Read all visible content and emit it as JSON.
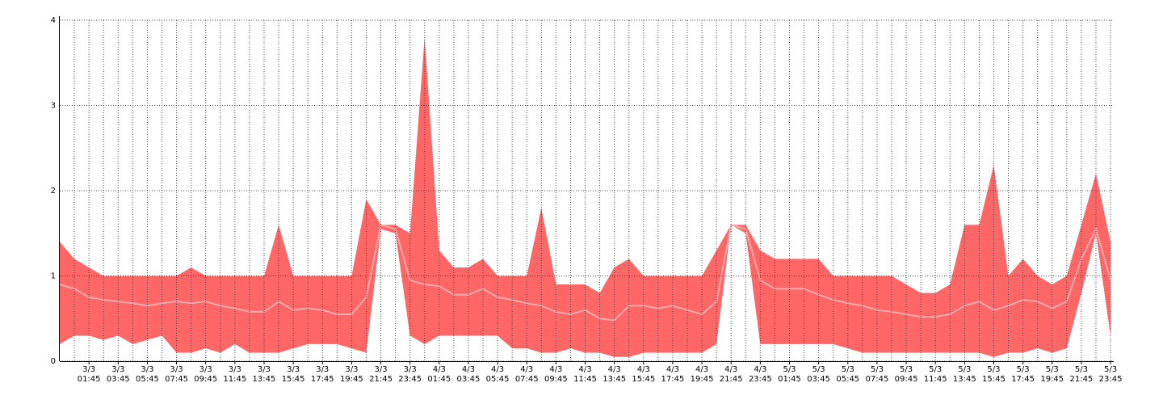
{
  "chart_data": {
    "type": "band",
    "x": [
      null,
      null,
      "3/3 01:45",
      null,
      "3/3 03:45",
      null,
      "3/3 05:45",
      null,
      "3/3 07:45",
      null,
      "3/3 09:45",
      null,
      "3/3 11:45",
      null,
      "3/3 13:45",
      null,
      "3/3 15:45",
      null,
      "3/3 17:45",
      null,
      "3/3 19:45",
      null,
      "3/3 21:45",
      null,
      "3/3 23:45",
      null,
      "4/3 01:45",
      null,
      "4/3 03:45",
      null,
      "4/3 05:45",
      null,
      "4/3 07:45",
      null,
      "4/3 09:45",
      null,
      "4/3 11:45",
      null,
      "4/3 13:45",
      null,
      "4/3 15:45",
      null,
      "4/3 17:45",
      null,
      "4/3 19:45",
      null,
      "4/3 21:45",
      null,
      "4/3 23:45",
      null,
      "5/3 01:45",
      null,
      "5/3 03:45",
      null,
      "5/3 05:45",
      null,
      "5/3 07:45",
      null,
      "5/3 09:45",
      null,
      "5/3 11:45",
      null,
      "5/3 13:45",
      null,
      "5/3 15:45",
      null,
      "5/3 17:45",
      null,
      "5/3 19:45",
      null,
      "5/3 21:45",
      null,
      "5/3 23:45"
    ],
    "series": [
      {
        "color": "#ff6666",
        "values": [
          1.4,
          1.2,
          1.1,
          1.0,
          1.0,
          1.0,
          1.0,
          1.0,
          1.0,
          1.1,
          1.0,
          1.0,
          1.0,
          1.0,
          1.0,
          1.6,
          1.0,
          1.0,
          1.0,
          1.0,
          1.0,
          1.9,
          1.6,
          1.6,
          1.5,
          3.8,
          1.3,
          1.1,
          1.1,
          1.2,
          1.0,
          1.0,
          1.0,
          1.8,
          0.9,
          0.9,
          0.9,
          0.8,
          1.1,
          1.2,
          1.0,
          1.0,
          1.0,
          1.0,
          1.0,
          1.3,
          1.6,
          1.6,
          1.3,
          1.2,
          1.2,
          1.2,
          1.2,
          1.0,
          1.0,
          1.0,
          1.0,
          1.0,
          0.9,
          0.8,
          0.8,
          0.9,
          1.6,
          1.6,
          2.3,
          1.0,
          1.2,
          1.0,
          0.9,
          1.0,
          1.6,
          2.2,
          1.4
        ]
      },
      {
        "color": "#ff6666",
        "values": [
          0.2,
          0.3,
          0.3,
          0.25,
          0.3,
          0.2,
          0.25,
          0.3,
          0.1,
          0.1,
          0.15,
          0.1,
          0.2,
          0.1,
          0.1,
          0.1,
          0.15,
          0.2,
          0.2,
          0.2,
          0.15,
          0.1,
          1.55,
          1.5,
          0.3,
          0.2,
          0.3,
          0.3,
          0.3,
          0.3,
          0.3,
          0.15,
          0.15,
          0.1,
          0.1,
          0.15,
          0.1,
          0.1,
          0.05,
          0.05,
          0.1,
          0.1,
          0.1,
          0.1,
          0.1,
          0.2,
          1.6,
          1.5,
          0.2,
          0.2,
          0.2,
          0.2,
          0.2,
          0.2,
          0.15,
          0.1,
          0.1,
          0.1,
          0.1,
          0.1,
          0.1,
          0.1,
          0.1,
          0.1,
          0.05,
          0.1,
          0.1,
          0.15,
          0.1,
          0.15,
          0.8,
          1.5,
          0.3
        ]
      },
      {
        "color": "#ffaaaa",
        "values": [
          0.9,
          0.85,
          0.75,
          0.72,
          0.7,
          0.68,
          0.65,
          0.68,
          0.7,
          0.68,
          0.7,
          0.65,
          0.62,
          0.58,
          0.58,
          0.7,
          0.6,
          0.62,
          0.6,
          0.55,
          0.55,
          0.75,
          1.6,
          1.55,
          0.95,
          0.9,
          0.88,
          0.78,
          0.78,
          0.85,
          0.75,
          0.72,
          0.68,
          0.65,
          0.58,
          0.55,
          0.6,
          0.5,
          0.48,
          0.65,
          0.65,
          0.62,
          0.65,
          0.6,
          0.55,
          0.7,
          1.6,
          1.55,
          0.95,
          0.85,
          0.85,
          0.85,
          0.78,
          0.72,
          0.68,
          0.65,
          0.6,
          0.58,
          0.55,
          0.52,
          0.52,
          0.55,
          0.65,
          0.7,
          0.6,
          0.65,
          0.72,
          0.7,
          0.62,
          0.7,
          1.2,
          1.55,
          0.95
        ]
      }
    ],
    "ylim": [
      0,
      4
    ],
    "yticks": [
      0,
      1,
      2,
      3,
      4
    ],
    "grid": true
  }
}
